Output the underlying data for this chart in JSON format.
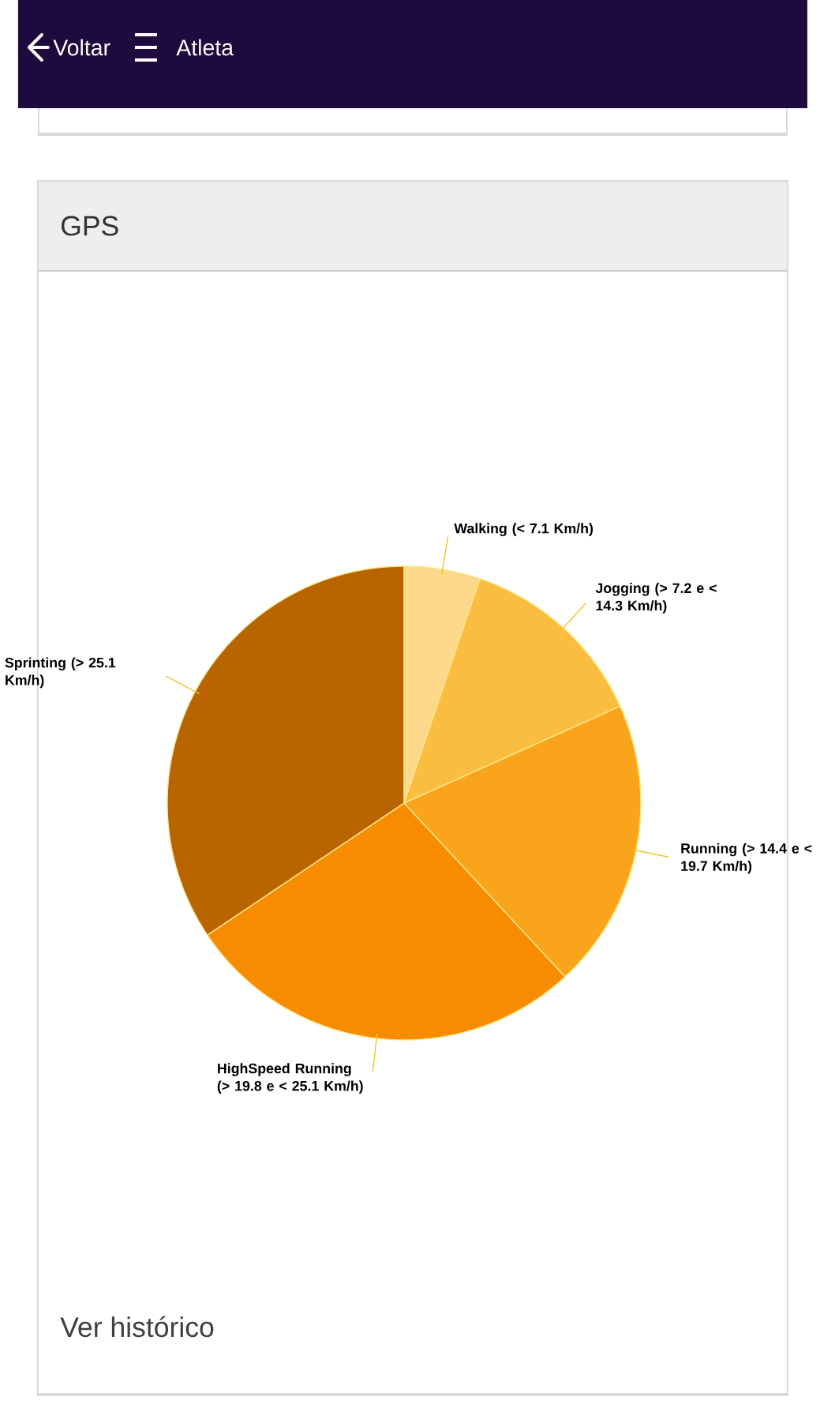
{
  "chart_data": {
    "type": "pie",
    "title": "GPS",
    "categories": [
      "Walking (< 7.1 Km/h)",
      "Jogging (> 7.2 e < 14.3 Km/h)",
      "Running (> 14.4 e < 19.7 Km/h)",
      "HighSpeed Running (> 19.8 e < 25.1 Km/h)",
      "Sprinting (> 25.1 Km/h)"
    ],
    "values": [
      5.2,
      13.1,
      19.8,
      27.5,
      34.4
    ],
    "colors": [
      "#fcd98a",
      "#fbbd40",
      "#f9a41a",
      "#f78c00",
      "#b86400"
    ],
    "annotations": [
      "Voltar",
      "Atleta",
      "Ver histórico"
    ]
  }
}
